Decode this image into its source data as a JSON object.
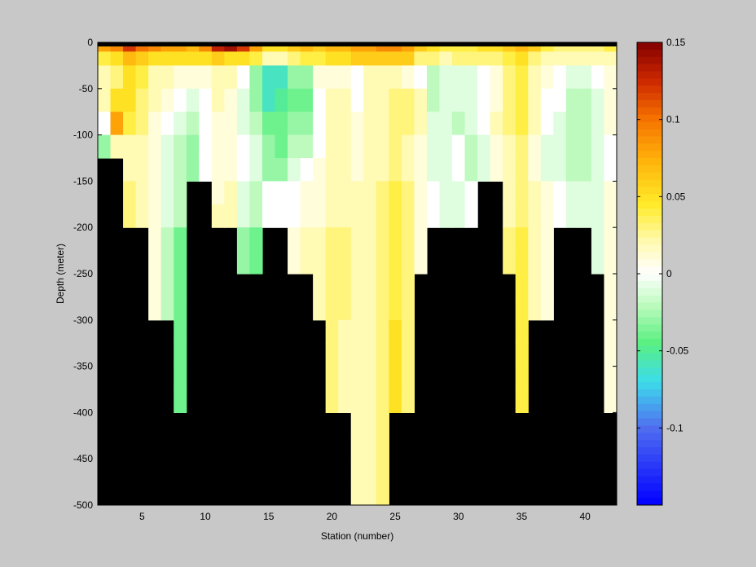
{
  "chart_data": {
    "type": "heatmap",
    "title": "",
    "xlabel": "Station (number)",
    "ylabel": "Depth (meter)",
    "xlim": [
      1.5,
      42.5
    ],
    "ylim": [
      -500,
      0
    ],
    "x_ticks": [
      5,
      10,
      15,
      20,
      25,
      30,
      35,
      40
    ],
    "y_ticks": [
      0,
      -50,
      -100,
      -150,
      -200,
      -250,
      -300,
      -350,
      -400,
      -450,
      -500
    ],
    "x_tick_labels": [
      "5",
      "10",
      "15",
      "20",
      "25",
      "30",
      "35",
      "40"
    ],
    "y_tick_labels": [
      "0",
      "-50",
      "-100",
      "-150",
      "-200",
      "-250",
      "-300",
      "-350",
      "-400",
      "-450",
      "-500"
    ],
    "color_limits": [
      -0.15,
      0.15
    ],
    "colorbar_ticks": [
      0.15,
      0.1,
      0.05,
      0,
      -0.05,
      -0.1
    ],
    "colorbar_tick_labels": [
      "0.15",
      "0.1",
      "0.05",
      "0",
      "-0.05",
      "-0.1"
    ],
    "colormap": "jet-white-centered",
    "missing_color": "#000000",
    "stations": [
      2,
      3,
      4,
      5,
      6,
      7,
      8,
      9,
      10,
      11,
      12,
      13,
      14,
      15,
      16,
      17,
      18,
      19,
      20,
      21,
      22,
      23,
      24,
      25,
      26,
      27,
      28,
      29,
      30,
      31,
      32,
      33,
      34,
      35,
      36,
      37,
      38,
      39,
      40,
      41,
      42
    ],
    "depth_rows": [
      0,
      -10,
      -25,
      -50,
      -75,
      -100,
      -125,
      -150,
      -175,
      -200,
      -225,
      -250,
      -275,
      -300,
      -325,
      -350,
      -375,
      -400,
      -425,
      -450,
      -475,
      -500
    ],
    "max_depth_by_station": [
      -125,
      -125,
      -200,
      -200,
      -300,
      -300,
      -400,
      -150,
      -150,
      -200,
      -200,
      -250,
      -250,
      -200,
      -200,
      -250,
      -250,
      -300,
      -400,
      -400,
      -500,
      -500,
      -500,
      -400,
      -400,
      -250,
      -200,
      -200,
      -200,
      -200,
      -150,
      -150,
      -250,
      -400,
      -300,
      -300,
      -200,
      -200,
      -200,
      -250,
      -400
    ],
    "profiles": [
      [
        0.08,
        0.04,
        0.02,
        0.02,
        0.0,
        -0.03,
        -0.03,
        -0.03
      ],
      [
        0.09,
        0.05,
        0.03,
        0.05,
        0.08,
        0.02,
        0.02,
        0.02
      ],
      [
        0.12,
        0.07,
        0.05,
        0.05,
        0.04,
        0.02,
        0.02,
        0.03,
        0.03,
        -0.03,
        -0.03,
        -0.03
      ],
      [
        0.1,
        0.06,
        0.04,
        0.03,
        0.03,
        0.02,
        0.02,
        0.02,
        0.02,
        -0.04,
        -0.04,
        -0.04
      ],
      [
        0.09,
        0.05,
        0.02,
        0.02,
        0.01,
        0.01,
        0.01,
        0.01,
        0.01,
        0.01,
        0.01,
        0.01,
        0.01,
        0.01,
        0.01,
        0.01,
        0.01
      ],
      [
        0.08,
        0.05,
        0.02,
        0.01,
        0.0,
        -0.01,
        -0.01,
        -0.01,
        -0.01,
        -0.02,
        -0.02,
        -0.02,
        -0.02,
        -0.02,
        -0.02,
        -0.02,
        -0.02
      ],
      [
        0.08,
        0.05,
        0.01,
        0.0,
        -0.01,
        -0.02,
        -0.02,
        -0.02,
        -0.02,
        -0.04,
        -0.04,
        -0.04,
        -0.04,
        -0.04,
        -0.04,
        -0.04,
        -0.04,
        -0.04,
        -0.04,
        -0.04,
        -0.04,
        -0.04,
        -0.04,
        -0.04,
        -0.04
      ],
      [
        0.07,
        0.05,
        0.01,
        -0.01,
        -0.02,
        -0.03,
        -0.03,
        -0.03
      ],
      [
        0.09,
        0.05,
        0.01,
        0.0,
        0.0,
        0.0,
        0.0,
        0.0
      ],
      [
        0.13,
        0.06,
        0.02,
        0.02,
        0.01,
        0.01,
        0.01,
        0.01,
        0.02,
        0.02,
        0.02,
        0.02
      ],
      [
        0.14,
        0.05,
        0.02,
        0.01,
        0.01,
        0.01,
        0.01,
        0.02,
        0.02,
        0.02,
        0.02,
        0.02
      ],
      [
        0.12,
        0.05,
        0.0,
        -0.01,
        -0.01,
        0.0,
        0.0,
        -0.01,
        -0.01,
        -0.03,
        -0.03,
        -0.03,
        -0.03,
        -0.03,
        -0.03,
        -0.03
      ],
      [
        0.08,
        0.04,
        -0.03,
        -0.03,
        -0.02,
        -0.01,
        -0.01,
        -0.02,
        -0.02,
        -0.04,
        -0.04,
        -0.04,
        -0.04,
        -0.04,
        -0.04,
        -0.04
      ],
      [
        0.05,
        0.02,
        -0.06,
        -0.06,
        -0.04,
        -0.03,
        -0.03,
        0.0,
        0.0,
        0.01,
        0.01,
        0.01
      ],
      [
        0.05,
        0.02,
        -0.06,
        -0.05,
        -0.04,
        -0.04,
        -0.03,
        0.0,
        0.0,
        0.01,
        0.01,
        0.01
      ],
      [
        0.06,
        0.03,
        -0.03,
        -0.04,
        -0.03,
        -0.02,
        -0.01,
        0.0,
        0.0,
        0.01,
        0.01,
        0.01,
        0.01,
        0.01,
        0.01,
        0.01
      ],
      [
        0.07,
        0.04,
        -0.03,
        -0.04,
        -0.03,
        -0.02,
        0.0,
        0.01,
        0.01,
        0.02,
        0.02,
        0.02,
        0.02,
        0.02,
        0.02,
        0.02
      ],
      [
        0.06,
        0.04,
        0.01,
        0.0,
        0.0,
        0.0,
        0.01,
        0.01,
        0.01,
        0.02,
        0.02,
        0.02,
        0.02,
        0.02,
        0.02,
        0.02,
        0.02,
        0.02,
        0.02,
        0.02
      ],
      [
        0.07,
        0.05,
        0.01,
        0.02,
        0.02,
        0.02,
        0.02,
        0.02,
        0.02,
        0.03,
        0.03,
        0.03,
        0.03,
        0.03,
        0.03,
        0.03,
        0.03,
        0.02,
        0.02,
        0.02,
        0.02,
        0.02,
        0.02,
        0.02,
        0.02
      ],
      [
        0.07,
        0.05,
        0.01,
        0.02,
        0.02,
        0.02,
        0.02,
        0.02,
        0.02,
        0.03,
        0.03,
        0.03,
        0.03,
        0.02,
        0.02,
        0.02,
        0.02,
        0.02,
        0.02,
        0.02,
        0.02,
        0.02,
        0.02,
        0.02,
        0.02
      ],
      [
        0.08,
        0.06,
        0.0,
        0.0,
        0.01,
        0.01,
        0.01,
        0.02,
        0.02,
        0.02,
        0.02,
        0.02,
        0.02,
        0.02,
        0.02,
        0.02,
        0.02,
        0.02,
        0.02,
        0.02,
        0.02,
        0.02,
        0.02,
        0.02,
        0.02,
        0.02,
        0.02,
        0.02,
        0.01,
        0.01,
        0.01,
        0.01,
        0.01,
        0.01,
        0.01,
        0.01,
        0.01,
        0.01
      ],
      [
        0.08,
        0.06,
        0.02,
        0.02,
        0.02,
        0.02,
        0.02,
        0.02,
        0.02,
        0.02,
        0.02,
        0.02,
        0.02,
        0.02,
        0.02,
        0.02,
        0.02,
        0.02,
        0.02,
        0.02,
        0.02,
        0.02,
        0.02,
        0.02,
        0.02,
        0.02,
        0.02,
        0.02,
        0.02,
        0.02,
        0.02,
        0.02,
        0.02,
        0.02,
        0.02,
        0.02,
        0.02,
        0.02
      ],
      [
        0.09,
        0.06,
        0.02,
        0.02,
        0.02,
        0.02,
        0.02,
        0.03,
        0.03,
        0.03,
        0.03,
        0.03,
        0.03,
        0.03,
        0.03,
        0.03,
        0.03,
        0.03,
        0.03,
        0.03,
        0.03,
        0.03,
        0.03,
        0.03,
        0.03,
        0.03,
        0.03,
        0.03,
        0.03,
        0.03,
        0.03,
        0.03,
        0.03,
        0.03,
        0.03,
        0.03,
        0.03,
        0.03
      ],
      [
        0.09,
        0.06,
        0.02,
        0.03,
        0.03,
        0.03,
        0.03,
        0.04,
        0.04,
        0.04,
        0.04,
        0.04,
        0.04,
        0.05,
        0.05,
        0.05,
        0.05,
        0.04,
        0.04,
        0.04,
        0.04,
        0.04,
        0.04,
        0.04,
        0.04
      ],
      [
        0.08,
        0.06,
        0.01,
        0.03,
        0.03,
        0.02,
        0.02,
        0.03,
        0.03,
        0.03,
        0.03,
        0.03,
        0.03,
        0.03,
        0.03,
        0.03,
        0.03,
        0.03,
        0.03,
        0.03,
        0.03,
        0.03,
        0.03,
        0.03,
        0.03
      ],
      [
        0.06,
        0.03,
        0.0,
        0.02,
        0.02,
        0.01,
        0.01,
        0.01,
        0.01,
        0.01,
        0.01,
        0.01,
        0.01,
        0.01,
        0.01,
        0.01
      ],
      [
        0.05,
        0.03,
        -0.02,
        -0.02,
        -0.01,
        -0.01,
        -0.01,
        0.0,
        0.0,
        0.0,
        0.0,
        0.0
      ],
      [
        0.04,
        0.02,
        -0.01,
        -0.01,
        -0.01,
        -0.01,
        -0.01,
        -0.01,
        -0.01,
        0.0,
        0.0,
        0.0
      ],
      [
        0.04,
        0.03,
        -0.01,
        -0.01,
        -0.02,
        0.0,
        0.0,
        -0.01,
        -0.01,
        0.0,
        0.0,
        0.0
      ],
      [
        0.04,
        0.03,
        -0.01,
        -0.01,
        -0.01,
        -0.02,
        -0.02,
        0.0,
        0.0,
        0.0,
        0.0,
        0.0
      ],
      [
        0.05,
        0.03,
        0.0,
        0.0,
        0.0,
        -0.01,
        -0.01,
        0.01,
        0.01
      ],
      [
        0.05,
        0.03,
        0.01,
        0.01,
        0.02,
        0.01,
        0.01,
        0.01,
        0.01
      ],
      [
        0.06,
        0.04,
        0.03,
        0.03,
        0.03,
        0.02,
        0.02,
        0.02,
        0.02,
        0.03,
        0.03,
        0.03,
        0.03,
        0.03,
        0.03,
        0.03
      ],
      [
        0.07,
        0.05,
        0.04,
        0.04,
        0.04,
        0.03,
        0.03,
        0.03,
        0.03,
        0.04,
        0.04,
        0.04,
        0.04,
        0.04,
        0.04,
        0.04,
        0.04,
        0.04,
        0.04,
        0.04,
        0.04,
        0.04,
        0.04,
        0.04,
        0.04
      ],
      [
        0.06,
        0.03,
        0.02,
        0.02,
        0.02,
        0.01,
        0.01,
        0.02,
        0.02,
        0.02,
        0.02,
        0.02,
        0.02,
        0.02,
        0.02,
        0.02,
        0.02,
        0.02,
        0.02,
        0.02
      ],
      [
        0.04,
        0.02,
        0.01,
        0.0,
        0.0,
        -0.01,
        -0.01,
        0.01,
        0.01,
        0.01,
        0.01,
        0.01,
        0.01,
        0.01,
        0.01,
        0.01,
        0.01,
        0.01,
        0.01,
        0.01
      ],
      [
        0.03,
        0.02,
        0.0,
        0.0,
        -0.01,
        -0.01,
        -0.01,
        0.0,
        0.0,
        0.0,
        0.0,
        0.0
      ],
      [
        0.03,
        0.02,
        -0.01,
        -0.02,
        -0.02,
        -0.02,
        -0.02,
        -0.01,
        -0.01,
        -0.01,
        -0.01,
        -0.01
      ],
      [
        0.03,
        0.02,
        -0.01,
        -0.02,
        -0.02,
        -0.02,
        -0.02,
        -0.01,
        -0.01,
        0.0,
        0.0,
        0.0
      ],
      [
        0.03,
        0.02,
        0.0,
        -0.01,
        -0.01,
        -0.01,
        -0.01,
        -0.01,
        -0.01,
        -0.01,
        -0.01,
        -0.01,
        -0.01,
        -0.01,
        -0.01,
        -0.01
      ],
      [
        0.04,
        0.02,
        0.01,
        0.01,
        0.01,
        0.0,
        0.0,
        0.01,
        0.01,
        0.01,
        0.01,
        0.01,
        0.01,
        0.01,
        0.01,
        0.01,
        0.01,
        0.01,
        0.01,
        0.01,
        0.01,
        0.01,
        0.01,
        0.01,
        0.01,
        0.01,
        0.01,
        0.01,
        0.01,
        0.01,
        0.01,
        0.01,
        0.01,
        0.01,
        0.01
      ]
    ]
  }
}
